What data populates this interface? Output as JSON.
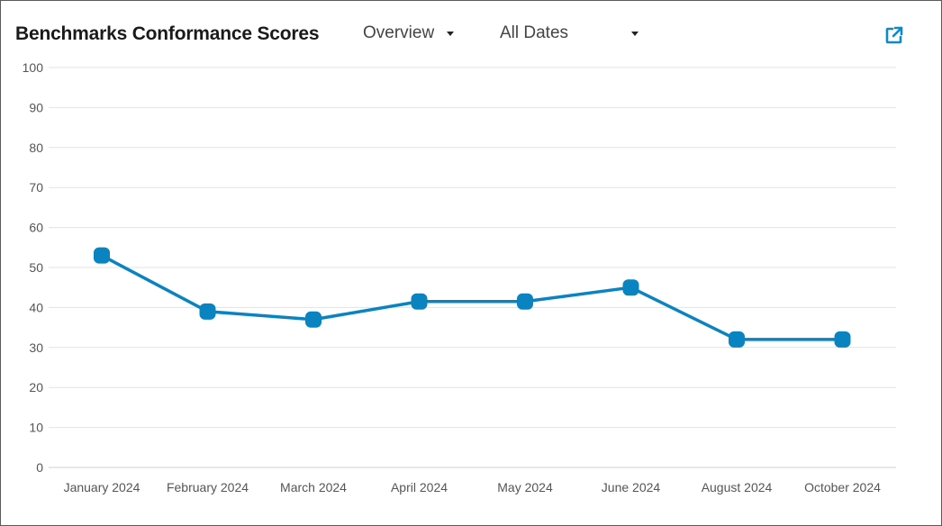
{
  "header": {
    "title": "Benchmarks Conformance Scores",
    "view_select": {
      "value": "Overview",
      "icon": "caret-down-icon"
    },
    "date_select": {
      "value": "All Dates",
      "icon": "caret-down-icon"
    },
    "export_icon": "external-link-icon"
  },
  "colors": {
    "series": "#0a84c1",
    "grid": "#e3e3e3",
    "accent": "#1189c6"
  },
  "chart_data": {
    "type": "line",
    "categories": [
      "January 2024",
      "February 2024",
      "March 2024",
      "April 2024",
      "May 2024",
      "June 2024",
      "August 2024",
      "October 2024"
    ],
    "series": [
      {
        "values": [
          53,
          39,
          37,
          41.5,
          41.5,
          45,
          32,
          32
        ]
      }
    ],
    "title": "Benchmarks Conformance Scores",
    "xlabel": "",
    "ylabel": "",
    "ylim": [
      0,
      100
    ],
    "yticks": [
      "0",
      "10",
      "20",
      "30",
      "40",
      "50",
      "60",
      "70",
      "80",
      "90",
      "100"
    ],
    "grid": true,
    "legend": "none"
  }
}
